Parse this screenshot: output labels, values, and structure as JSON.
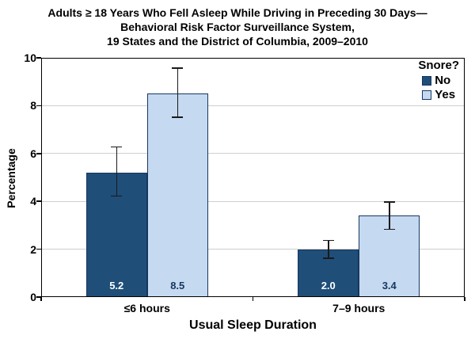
{
  "title": {
    "line1": "Adults ≥ 18 Years Who Fell Asleep While Driving in Preceding 30 Days—",
    "line2": "Behavioral Risk Factor Surveillance System,",
    "line3": "19 States and the District of Columbia, 2009–2010"
  },
  "axes": {
    "y_label": "Percentage",
    "x_label": "Usual Sleep Duration",
    "y_ticks": [
      0,
      2,
      4,
      6,
      8,
      10
    ]
  },
  "legend": {
    "title": "Snore?",
    "items": [
      {
        "label": "No",
        "color": "#1F4E79"
      },
      {
        "label": "Yes",
        "color": "#C5D9F1"
      }
    ]
  },
  "colors": {
    "bar_border": "#17375E",
    "gridline": "#cfcfcf",
    "error_bar": "#1a1a1a"
  },
  "chart_data": {
    "type": "bar",
    "title": "Adults ≥ 18 Years Who Fell Asleep While Driving in Preceding 30 Days—Behavioral Risk Factor Surveillance System, 19 States and the District of Columbia, 2009–2010",
    "categories": [
      "≤6 hours",
      "7–9 hours"
    ],
    "series": [
      {
        "name": "No",
        "color": "#1F4E79",
        "label_color": "#FFFFFF",
        "values": [
          5.2,
          2.0
        ],
        "ci_low": [
          4.2,
          1.6
        ],
        "ci_high": [
          6.3,
          2.4
        ]
      },
      {
        "name": "Yes",
        "color": "#C5D9F1",
        "label_color": "#17375E",
        "values": [
          8.5,
          3.4
        ],
        "ci_low": [
          7.5,
          2.8
        ],
        "ci_high": [
          9.6,
          4.0
        ]
      }
    ],
    "xlabel": "Usual Sleep Duration",
    "ylabel": "Percentage",
    "ylim": [
      0,
      10
    ],
    "grid": true,
    "error_bars": true,
    "value_labels": true,
    "legend_title": "Snore?",
    "legend_position": "top-right"
  }
}
